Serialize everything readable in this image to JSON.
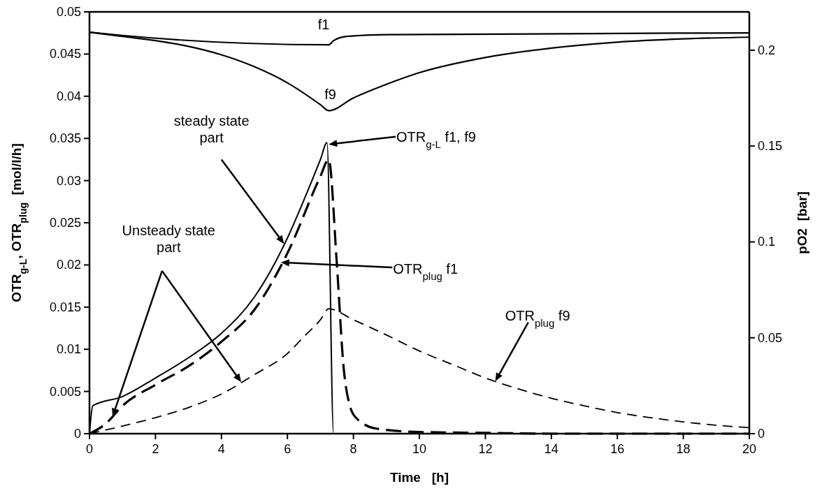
{
  "chart_data": {
    "type": "line",
    "xlabel": "Time   [h]",
    "ylabel": "OTR$_{g-L}$, OTR$_{plug}$  [mol/l/h]",
    "y2label": "pO2  [bar]",
    "xlim": [
      0,
      20
    ],
    "xticks": [
      0,
      2,
      4,
      6,
      8,
      10,
      12,
      14,
      16,
      18,
      20
    ],
    "ylim": [
      0,
      0.05
    ],
    "yticks": [
      0,
      0.005,
      0.01,
      0.015,
      0.02,
      0.025,
      0.03,
      0.035,
      0.04,
      0.045,
      0.05
    ],
    "y2lim": [
      0,
      0.22
    ],
    "y2ticks": [
      0,
      0.05,
      0.1,
      0.15,
      0.2
    ],
    "grid": false,
    "marker": "none",
    "series": [
      {
        "color": "#000000",
        "line_style": "solid",
        "x": [
          0,
          0.1,
          1,
          2,
          3,
          4,
          5,
          6,
          6.5,
          7,
          7.2,
          7.4,
          8,
          10,
          12,
          14,
          16,
          18,
          20
        ],
        "values": [
          0,
          0.0033,
          0.0044,
          0.0066,
          0.009,
          0.0119,
          0.0162,
          0.0232,
          0.0277,
          0.0325,
          0.0345,
          0,
          0,
          0,
          0,
          0,
          0,
          0,
          0
        ]
      },
      {
        "color": "#000000",
        "line_style": "dashed",
        "x": [
          0,
          0.5,
          1,
          2,
          3,
          4,
          5,
          6,
          7,
          7.25,
          7.5,
          7.7,
          7.9,
          8.1,
          8.7,
          10,
          12,
          14,
          16,
          18,
          20
        ],
        "values": [
          0,
          0.0012,
          0.0033,
          0.0058,
          0.008,
          0.0109,
          0.0147,
          0.0214,
          0.0305,
          0.0325,
          0.02,
          0.008,
          0.0032,
          0.0018,
          0.0006,
          0.0002,
          0.0001,
          0,
          0,
          0,
          0
        ]
      },
      {
        "color": "#000000",
        "line_style": "dashed",
        "x": [
          0,
          1,
          2,
          3,
          4,
          5,
          6,
          6.5,
          7,
          7.25,
          8,
          9,
          10,
          11,
          12,
          13,
          14,
          15,
          16,
          17,
          18,
          19,
          20
        ],
        "values": [
          0,
          0.0009,
          0.0019,
          0.0031,
          0.0047,
          0.007,
          0.0095,
          0.0115,
          0.0135,
          0.0148,
          0.0135,
          0.0117,
          0.0098,
          0.0082,
          0.0066,
          0.0053,
          0.0042,
          0.0033,
          0.0025,
          0.0019,
          0.0014,
          0.001,
          0.0007
        ]
      },
      {
        "name": "f1",
        "color": "#000000",
        "line_style": "solid",
        "axis": "y2",
        "x": [
          0,
          1,
          7.25,
          7.4,
          7.8,
          9,
          20
        ],
        "values": [
          0.2094,
          0.2077,
          0.2028,
          0.205,
          0.2072,
          0.2081,
          0.209
        ]
      },
      {
        "name": "f9",
        "color": "#000000",
        "line_style": "solid",
        "axis": "y2",
        "x": [
          0,
          1,
          2,
          3,
          4,
          5,
          6,
          7,
          7.25,
          8,
          9,
          10,
          12,
          14,
          16,
          18,
          20
        ],
        "values": [
          0.2094,
          0.2072,
          0.205,
          0.202,
          0.1976,
          0.1914,
          0.183,
          0.1716,
          0.1685,
          0.1751,
          0.1822,
          0.1883,
          0.1962,
          0.2011,
          0.2042,
          0.2059,
          0.2068
        ]
      }
    ],
    "annotations": [
      "OTR$_{g-L}$ f1, f9",
      {
        "text": "OTR$_{plug}$ f1",
        "x": 5.8,
        "y": 0.0203
      },
      {
        "text": "OTR$_{plug}$ f9",
        "x": 12.3,
        "y": 0.0062
      },
      {
        "text": "steady state part",
        "x": 5.9,
        "y": 0.0225
      },
      {
        "text": "Unsteady state part",
        "x": 4.6,
        "y": 0.0061
      }
    ]
  }
}
